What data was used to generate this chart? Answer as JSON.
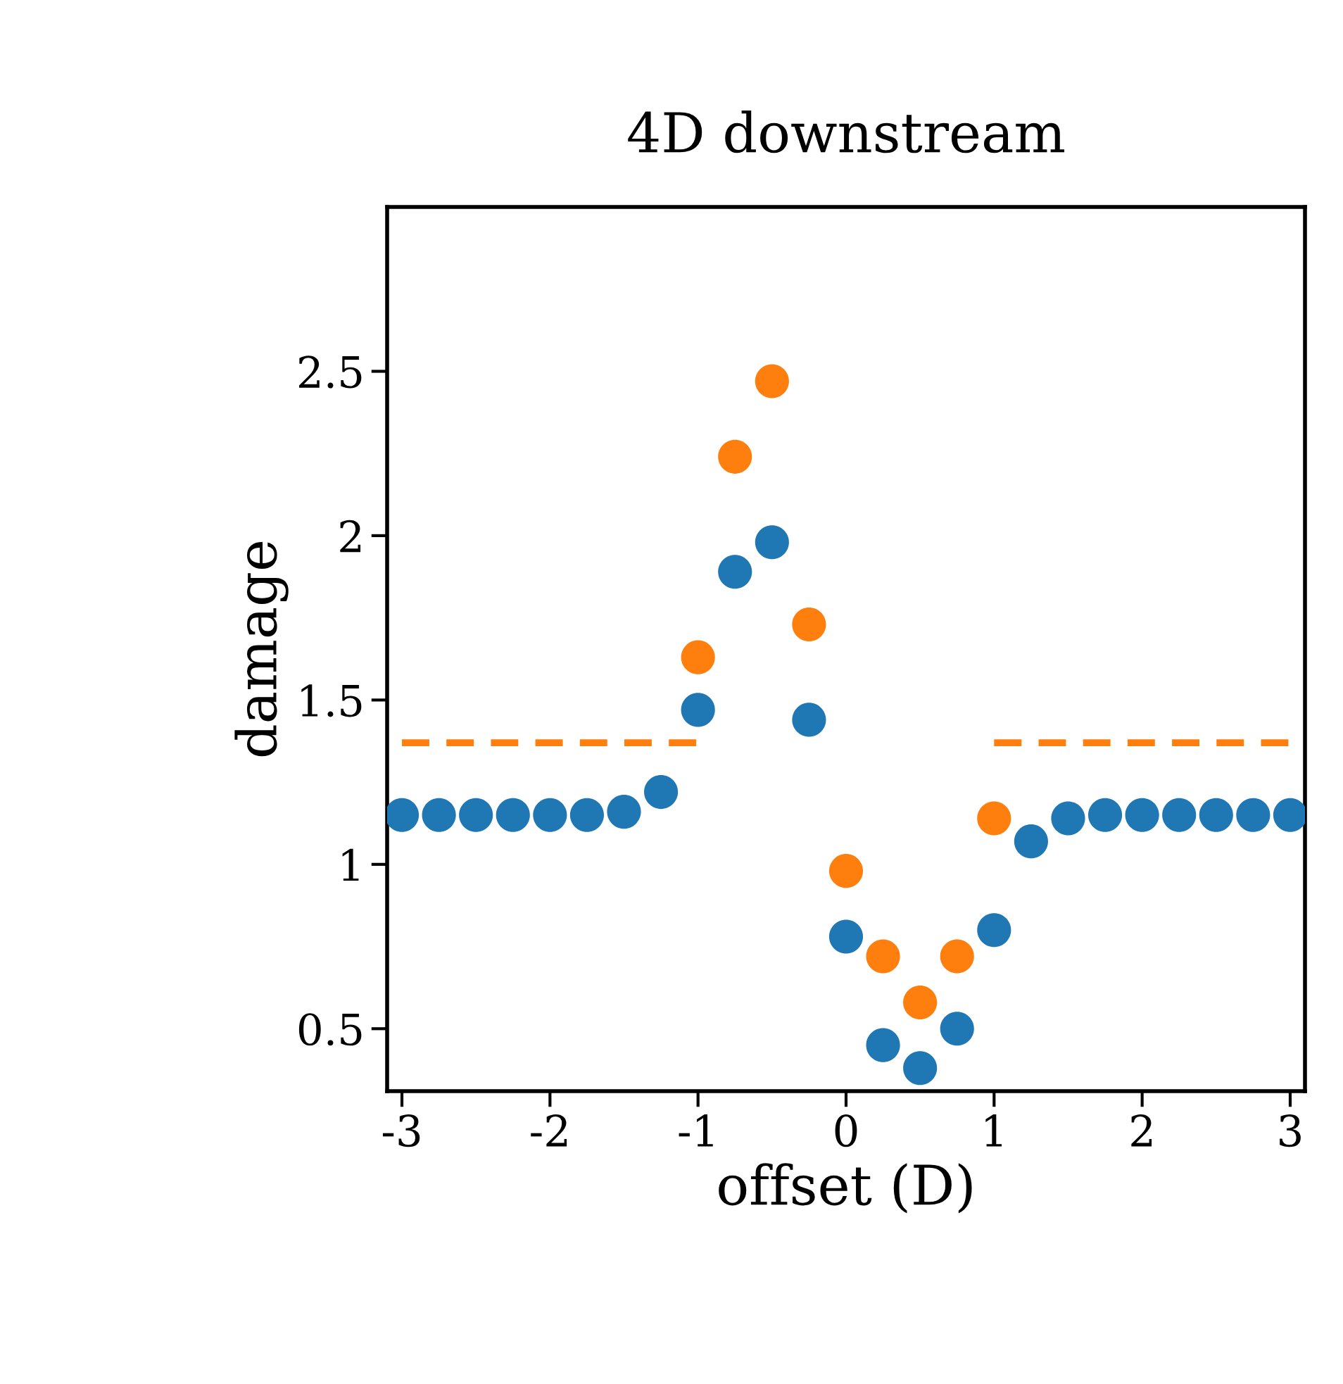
{
  "chart_data": {
    "type": "scatter",
    "title": "4D downstream",
    "xlabel": "offset (D)",
    "ylabel": "damage",
    "xlim": [
      -3.1,
      3.1
    ],
    "ylim": [
      0.31,
      3.0
    ],
    "xticks": [
      {
        "value": -3,
        "label": "-3"
      },
      {
        "value": -2,
        "label": "-2"
      },
      {
        "value": -1,
        "label": "-1"
      },
      0,
      1,
      2,
      3
    ],
    "yticks": [
      0.5,
      1,
      1.5,
      2,
      2.5
    ],
    "grid": false,
    "legend": false,
    "marker": "circle",
    "series": [
      {
        "color": "#1f77b4",
        "x": [
          -3,
          -2.75,
          -2.5,
          -2.25,
          -2,
          -1.75,
          -1.5,
          -1.25,
          -1,
          -0.75,
          -0.5,
          -0.25,
          0,
          0.25,
          0.5,
          0.75,
          1,
          1.25,
          1.5,
          1.75,
          2,
          2.25,
          2.5,
          2.75,
          3
        ],
        "values": [
          1.15,
          1.15,
          1.15,
          1.15,
          1.15,
          1.15,
          1.16,
          1.22,
          1.47,
          1.89,
          1.98,
          1.44,
          0.78,
          0.45,
          0.38,
          0.5,
          0.8,
          1.07,
          1.14,
          1.15,
          1.15,
          1.15,
          1.15,
          1.15,
          1.15
        ]
      },
      {
        "color": "#ff7f0e",
        "x": [
          -1,
          -0.75,
          -0.5,
          -0.25,
          0,
          0.25,
          0.5,
          0.75,
          1
        ],
        "values": [
          1.63,
          2.24,
          2.47,
          1.73,
          0.98,
          0.72,
          0.58,
          0.72,
          1.14
        ]
      },
      {
        "type": "line",
        "line_style": "dashed",
        "marker": "none",
        "color": "#ff7f0e",
        "x": [
          -3,
          -1
        ],
        "values": [
          1.37,
          1.37
        ]
      },
      {
        "type": "line",
        "line_style": "dashed",
        "marker": "none",
        "color": "#ff7f0e",
        "x": [
          1,
          3
        ],
        "values": [
          1.37,
          1.37
        ]
      }
    ]
  }
}
